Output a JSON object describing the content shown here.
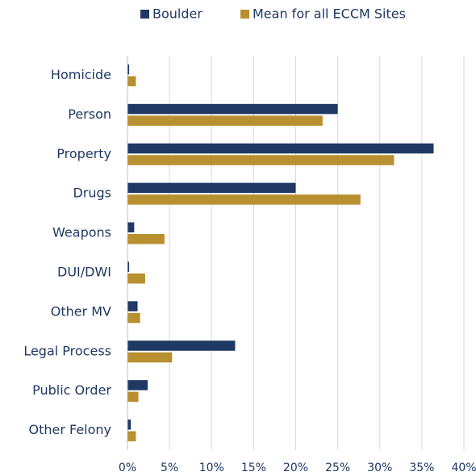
{
  "chart_data": {
    "type": "bar",
    "orientation": "horizontal",
    "categories": [
      "Homicide",
      "Person",
      "Property",
      "Drugs",
      "Weapons",
      "DUI/DWI",
      "Other MV",
      "Legal Process",
      "Public Order",
      "Other Felony"
    ],
    "series": [
      {
        "name": "Boulder",
        "color": "#1f3864",
        "values": [
          0.2,
          25,
          36.4,
          20,
          0.8,
          0.2,
          1.2,
          12.8,
          2.4,
          0.4
        ]
      },
      {
        "name": "Mean for all ECCM Sites",
        "color": "#b8902f",
        "values": [
          1.0,
          23.2,
          31.7,
          27.7,
          4.4,
          2.1,
          1.5,
          5.3,
          1.3,
          1.0
        ]
      }
    ],
    "xlim": [
      0,
      40
    ],
    "xticks": [
      {
        "value": 0,
        "label": "0%"
      },
      {
        "value": 5,
        "label": "5%"
      },
      {
        "value": 10,
        "label": "10%"
      },
      {
        "value": 15,
        "label": "15%"
      },
      {
        "value": 20,
        "label": "20%"
      },
      {
        "value": 25,
        "label": "25%"
      },
      {
        "value": 30,
        "label": "30%"
      },
      {
        "value": 35,
        "label": "35%"
      },
      {
        "value": 40,
        "label": "40%"
      }
    ],
    "grid": true,
    "legend": "top"
  }
}
